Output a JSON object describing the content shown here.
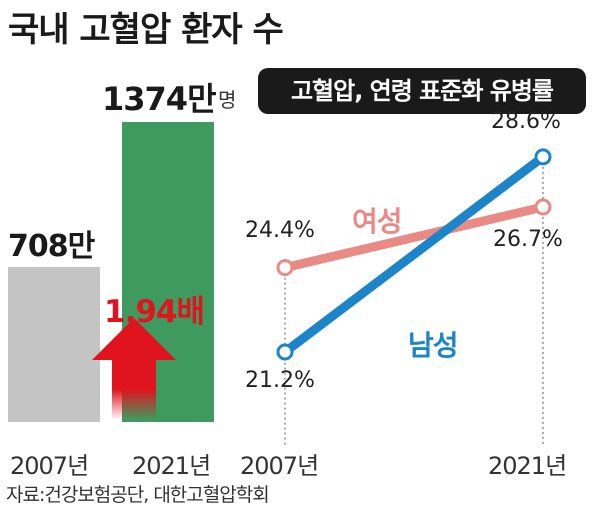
{
  "title": "국내 고혈압 환자 수",
  "source": "자료:건강보험공단, 대한고혈압학회",
  "chart_data": [
    {
      "type": "bar",
      "categories": [
        "2007년",
        "2021년"
      ],
      "values": [
        708,
        1374
      ],
      "value_labels": [
        "708만",
        "1374만"
      ],
      "unit": "명",
      "ratio_label": "1.94배",
      "colors": [
        "#c4c4c4",
        "#3f9a60"
      ],
      "arrow_color": "#e0141e"
    },
    {
      "type": "line",
      "title": "고혈압, 연령 표준화 유병률",
      "categories": [
        "2007년",
        "2021년"
      ],
      "series": [
        {
          "name": "여성",
          "values": [
            24.4,
            26.7
          ],
          "labels": [
            "24.4%",
            "26.7%"
          ],
          "color": "#e98a84"
        },
        {
          "name": "남성",
          "values": [
            21.2,
            28.6
          ],
          "labels": [
            "21.2%",
            "28.6%"
          ],
          "color": "#1c85c9"
        }
      ],
      "ylim": [
        19,
        30
      ],
      "grid": false
    }
  ]
}
